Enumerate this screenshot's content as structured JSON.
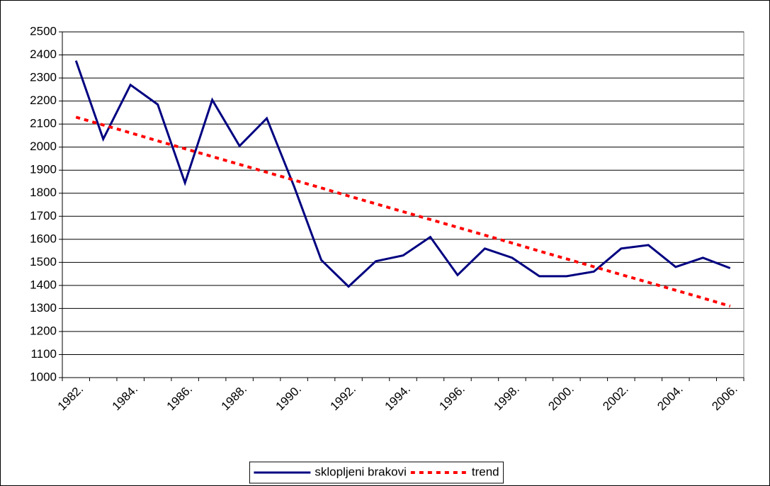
{
  "chart_data": {
    "type": "line",
    "categories": [
      "1982.",
      null,
      "1984.",
      null,
      "1986.",
      null,
      "1988.",
      null,
      "1990.",
      null,
      "1992.",
      null,
      "1994.",
      null,
      "1996.",
      null,
      "1998.",
      null,
      "2000.",
      null,
      "2002.",
      null,
      "2004.",
      null,
      "2006."
    ],
    "series": [
      {
        "name": "sklopljeni brakovi",
        "color": "#000080",
        "line_style": "solid",
        "values": [
          2375,
          2035,
          2270,
          2185,
          1845,
          2205,
          2005,
          2125,
          1830,
          1510,
          1395,
          1505,
          1530,
          1610,
          1445,
          1560,
          1520,
          1440,
          1440,
          1460,
          1560,
          1575,
          1480,
          1520,
          1475
        ]
      },
      {
        "name": "trend",
        "color": "#ff0000",
        "line_style": "dashed",
        "values": [
          2130,
          2096,
          2062,
          2027,
          1993,
          1959,
          1925,
          1891,
          1857,
          1823,
          1788,
          1754,
          1720,
          1686,
          1652,
          1618,
          1584,
          1549,
          1515,
          1481,
          1447,
          1413,
          1379,
          1345,
          1310
        ]
      }
    ],
    "ylim": [
      1000,
      2500
    ],
    "yticks": [
      1000,
      1100,
      1200,
      1300,
      1400,
      1500,
      1600,
      1700,
      1800,
      1900,
      2000,
      2100,
      2200,
      2300,
      2400,
      2500
    ],
    "grid": true,
    "legend": "bottom"
  }
}
